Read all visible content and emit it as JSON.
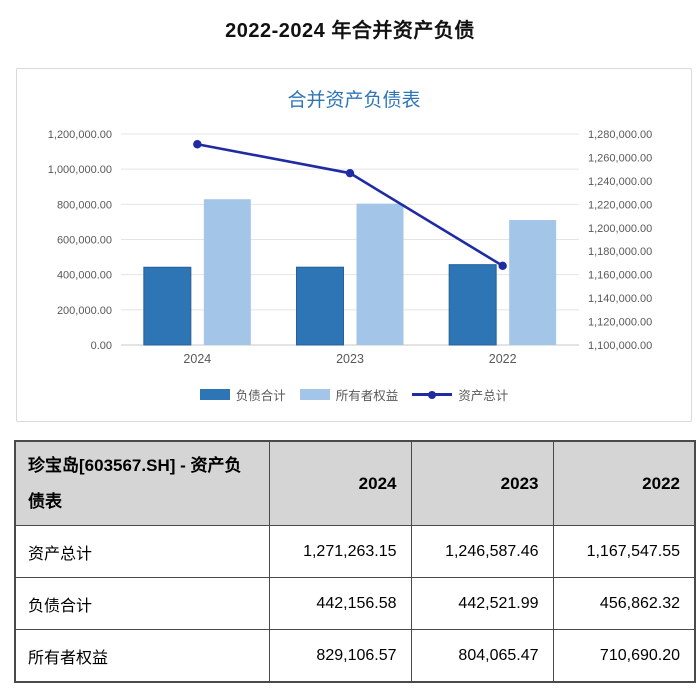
{
  "page": {
    "title": "2022-2024 年合并资产负债"
  },
  "chart_data": {
    "type": "combo",
    "title": "合并资产负债表",
    "title_color": "#2E75B6",
    "categories": [
      "2024",
      "2023",
      "2022"
    ],
    "bar_series": [
      {
        "name": "负债合计",
        "color": "#2E75B5",
        "values": [
          442156.58,
          442521.99,
          456862.32
        ],
        "axis": "left"
      },
      {
        "name": "所有者权益",
        "color": "#A3C6E8",
        "values": [
          829106.57,
          804065.47,
          710690.2
        ],
        "axis": "left"
      }
    ],
    "line_series": [
      {
        "name": "资产总计",
        "color": "#1F2BA3",
        "values": [
          1271263.15,
          1246587.46,
          1167547.55
        ],
        "axis": "right"
      }
    ],
    "axes": {
      "left": {
        "min": 0,
        "max": 1200000,
        "step": 200000
      },
      "right": {
        "min": 1100000,
        "max": 1280000,
        "step": 20000
      }
    },
    "grid": true,
    "legend_position": "bottom",
    "tick_format": "#,##0.00",
    "colors": {
      "axis_text": "#595959",
      "gridline": "#e4e4e4",
      "axis_line": "#c8c8c8"
    }
  },
  "table": {
    "title": "珍宝岛[603567.SH] - 资产负债表",
    "columns": [
      "2024",
      "2023",
      "2022"
    ],
    "rows": [
      {
        "label": "资产总计",
        "values": [
          "1,271,263.15",
          "1,246,587.46",
          "1,167,547.55"
        ]
      },
      {
        "label": "负债合计",
        "values": [
          "442,156.58",
          "442,521.99",
          "456,862.32"
        ]
      },
      {
        "label": "所有者权益",
        "values": [
          "829,106.57",
          "804,065.47",
          "710,690.20"
        ]
      }
    ]
  }
}
